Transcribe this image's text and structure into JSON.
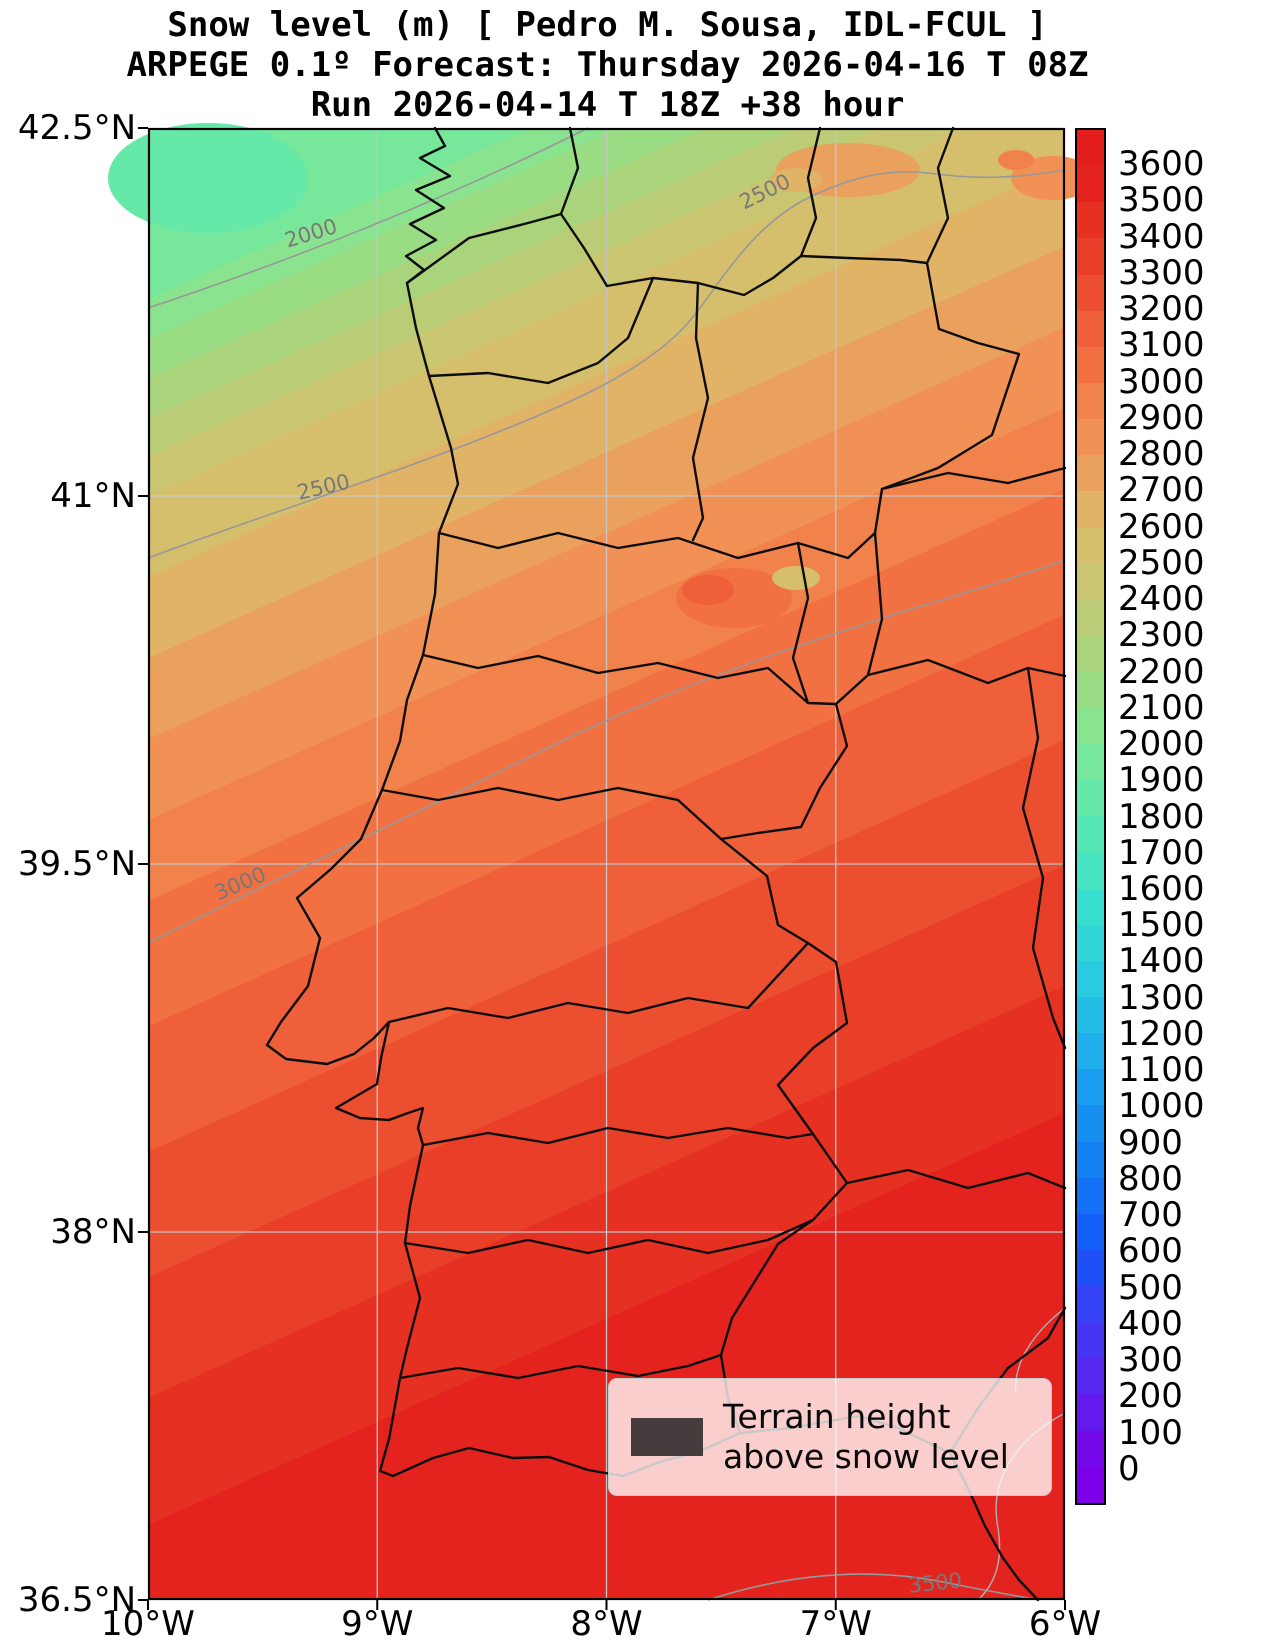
{
  "title": {
    "line1": "Snow level (m) [ Pedro M. Sousa, IDL-FCUL ]",
    "line2": "ARPEGE 0.1º Forecast: Thursday 2026-04-16 T 08Z",
    "line3": "Run 2026-04-14 T 18Z +38 hour"
  },
  "axes": {
    "y_ticks": [
      "42.5°N",
      "41°N",
      "39.5°N",
      "38°N",
      "36.5°N"
    ],
    "x_ticks": [
      "10°W",
      "9°W",
      "8°W",
      "7°W",
      "6°W"
    ]
  },
  "colorbar": {
    "tick_labels": [
      "3600",
      "3500",
      "3400",
      "3300",
      "3200",
      "3100",
      "3000",
      "2900",
      "2800",
      "2700",
      "2600",
      "2500",
      "2400",
      "2300",
      "2200",
      "2100",
      "2000",
      "1900",
      "1800",
      "1700",
      "1600",
      "1500",
      "1400",
      "1300",
      "1200",
      "1100",
      "1000",
      "900",
      "800",
      "700",
      "600",
      "500",
      "400",
      "300",
      "200",
      "100",
      "0"
    ],
    "colormap_stops": [
      {
        "v": 0,
        "c": "#7d00e8"
      },
      {
        "v": 200,
        "c": "#5c22ee"
      },
      {
        "v": 400,
        "c": "#3f3cf4"
      },
      {
        "v": 600,
        "c": "#1456f8"
      },
      {
        "v": 800,
        "c": "#1478f4"
      },
      {
        "v": 1000,
        "c": "#1896f0"
      },
      {
        "v": 1200,
        "c": "#22b6ea"
      },
      {
        "v": 1400,
        "c": "#2cd2de"
      },
      {
        "v": 1600,
        "c": "#3ee2c8"
      },
      {
        "v": 1800,
        "c": "#5ce8ae"
      },
      {
        "v": 2000,
        "c": "#80e694"
      },
      {
        "v": 2200,
        "c": "#a2d87e"
      },
      {
        "v": 2400,
        "c": "#c2c872"
      },
      {
        "v": 2600,
        "c": "#dcbc6a"
      },
      {
        "v": 2800,
        "c": "#f0985a"
      },
      {
        "v": 3000,
        "c": "#f37a46"
      },
      {
        "v": 3200,
        "c": "#ee5634"
      },
      {
        "v": 3400,
        "c": "#e73624"
      },
      {
        "v": 3600,
        "c": "#e31c1c"
      }
    ]
  },
  "contour_labels": [
    "2000",
    "2500",
    "2500",
    "3000",
    "3500"
  ],
  "legend": {
    "line1": "Terrain height",
    "line2": "above snow level",
    "swatch_color": "#453c3e"
  },
  "chart_data": {
    "type": "heatmap",
    "title": "Snow level (m) [ Pedro M. Sousa, IDL-FCUL ]",
    "subtitle": "ARPEGE 0.1º Forecast: Thursday 2026-04-16 T 08Z",
    "run_line": "Run 2026-04-14 T 18Z +38 hour",
    "units": "m",
    "lon_range": [
      -10,
      -6
    ],
    "lat_range": [
      36.5,
      42.5
    ],
    "x_tick_labels": [
      "10°W",
      "9°W",
      "8°W",
      "7°W",
      "6°W"
    ],
    "y_tick_labels": [
      "42.5°N",
      "41°N",
      "39.5°N",
      "38°N",
      "36.5°N"
    ],
    "colorbar_range": [
      0,
      3600
    ],
    "colorbar_step": 100,
    "labeled_contour_levels": [
      2000,
      2500,
      3000,
      3500
    ],
    "grid": true,
    "legend": "Terrain height above snow level",
    "x_lon": [
      -10,
      -9,
      -8,
      -7,
      -6
    ],
    "y_lat": [
      42.5,
      41,
      39.5,
      38,
      36.5
    ],
    "snow_level_m": [
      [
        1900,
        2100,
        2400,
        2600,
        2600
      ],
      [
        2300,
        2500,
        2700,
        2800,
        2900
      ],
      [
        2800,
        2900,
        3000,
        3100,
        3150
      ],
      [
        3100,
        3200,
        3250,
        3300,
        3300
      ],
      [
        3300,
        3400,
        3450,
        3500,
        3500
      ]
    ]
  }
}
